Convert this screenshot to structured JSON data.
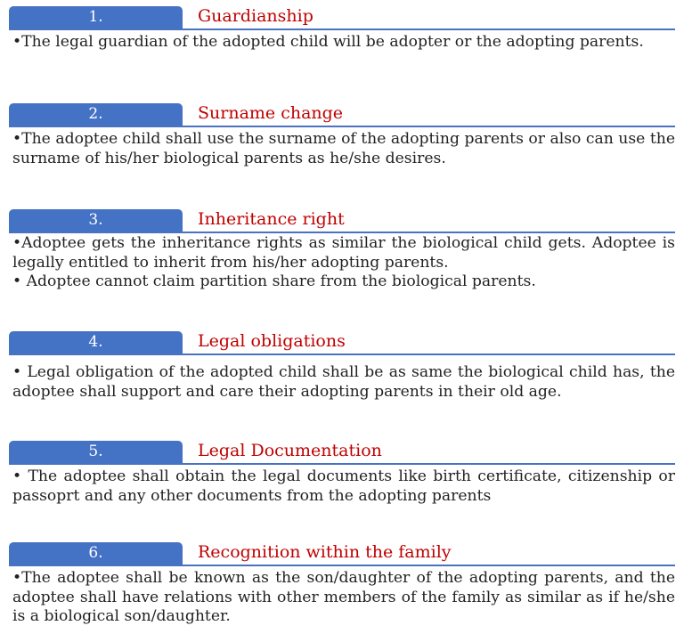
{
  "sections": [
    {
      "number": "1.",
      "title": "Guardianship",
      "bullets": [
        "•The legal guardian of the adopted child will be adopter or the adopting parents."
      ]
    },
    {
      "number": "2.",
      "title": "Surname change",
      "bullets": [
        "•The adoptee child shall use the surname of the adopting parents or also can use the surname of his/her biological parents as he/she desires."
      ]
    },
    {
      "number": "3.",
      "title": "Inheritance right",
      "bullets": [
        "•Adoptee gets the inheritance rights as similar the biological child gets. Adoptee is legally entitled to inherit from his/her adopting parents.",
        "• Adoptee cannot claim partition share from the biological parents."
      ]
    },
    {
      "number": "4.",
      "title": "Legal obligations",
      "bullets": [
        "• Legal obligation of the adopted child shall be as same the biological child has, the adoptee shall support and care their adopting parents in their old age."
      ]
    },
    {
      "number": "5.",
      "title": "Legal Documentation",
      "bullets": [
        "• The adoptee shall obtain the legal documents like birth certificate, citizenship or passoprt and any other documents from the adopting parents"
      ]
    },
    {
      "number": "6.",
      "title": "Recognition within the family",
      "bullets": [
        "•The adoptee shall be known as the son/daughter of the adopting parents, and the adoptee shall have relations with other members of the family as similar as if he/she is a biological son/daughter."
      ]
    }
  ],
  "colors": {
    "tab": "#4472c4",
    "title": "#c00000",
    "text": "#222222"
  }
}
